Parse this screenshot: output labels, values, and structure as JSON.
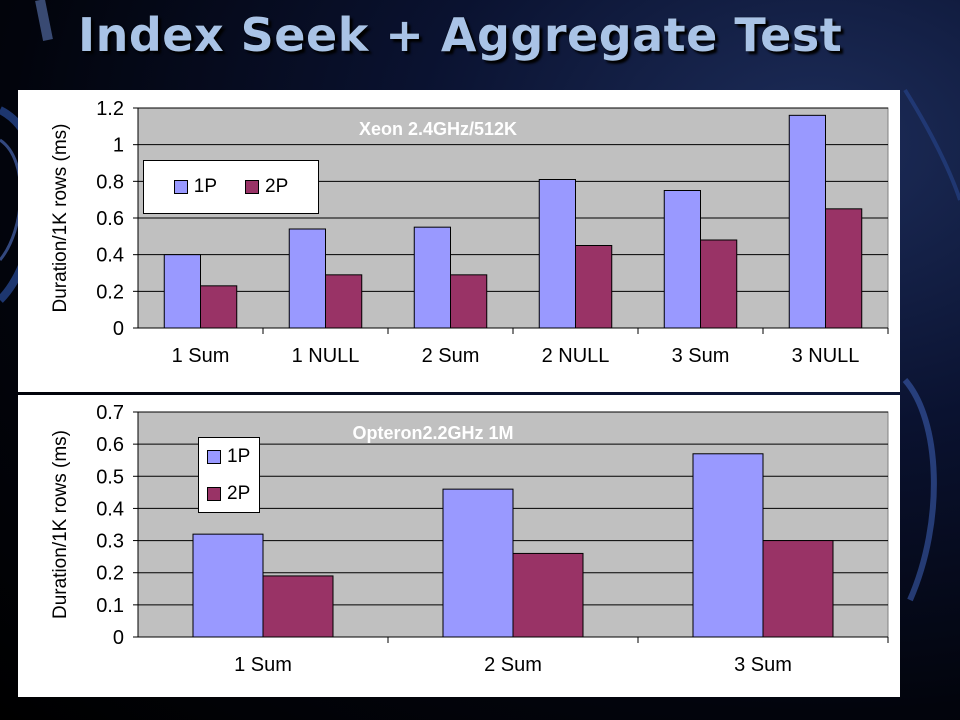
{
  "slide": {
    "title": "Index Seek + Aggregate Test"
  },
  "colors": {
    "series_1P": "#9999ff",
    "series_2P": "#993366",
    "plot_bg": "#c0c0c0",
    "title_text": "#a9c3e6",
    "annotation_text": "#ffffff"
  },
  "chart_data": [
    {
      "type": "bar",
      "annotation": "Xeon 2.4GHz/512K",
      "categories": [
        "1 Sum",
        "1 NULL",
        "2 Sum",
        "2 NULL",
        "3 Sum",
        "3 NULL"
      ],
      "series": [
        {
          "name": "1P",
          "values": [
            0.4,
            0.54,
            0.55,
            0.81,
            0.75,
            1.16
          ]
        },
        {
          "name": "2P",
          "values": [
            0.23,
            0.29,
            0.29,
            0.45,
            0.48,
            0.65
          ]
        }
      ],
      "xlabel": "",
      "ylabel": "Duration/1K rows (ms)",
      "ylim": [
        0,
        1.2
      ],
      "yticks": [
        "0",
        "0.2",
        "0.4",
        "0.6",
        "0.8",
        "1",
        "1.2"
      ],
      "grid": true,
      "legend": "upper-left"
    },
    {
      "type": "bar",
      "annotation": "Opteron2.2GHz 1M",
      "categories": [
        "1 Sum",
        "2 Sum",
        "3 Sum"
      ],
      "series": [
        {
          "name": "1P",
          "values": [
            0.32,
            0.46,
            0.57
          ]
        },
        {
          "name": "2P",
          "values": [
            0.19,
            0.26,
            0.3
          ]
        }
      ],
      "xlabel": "",
      "ylabel": "Duration/1K rows (ms)",
      "ylim": [
        0,
        0.7
      ],
      "yticks": [
        "0",
        "0.1",
        "0.2",
        "0.3",
        "0.4",
        "0.5",
        "0.6",
        "0.7"
      ],
      "grid": true,
      "legend": "upper-left"
    }
  ]
}
